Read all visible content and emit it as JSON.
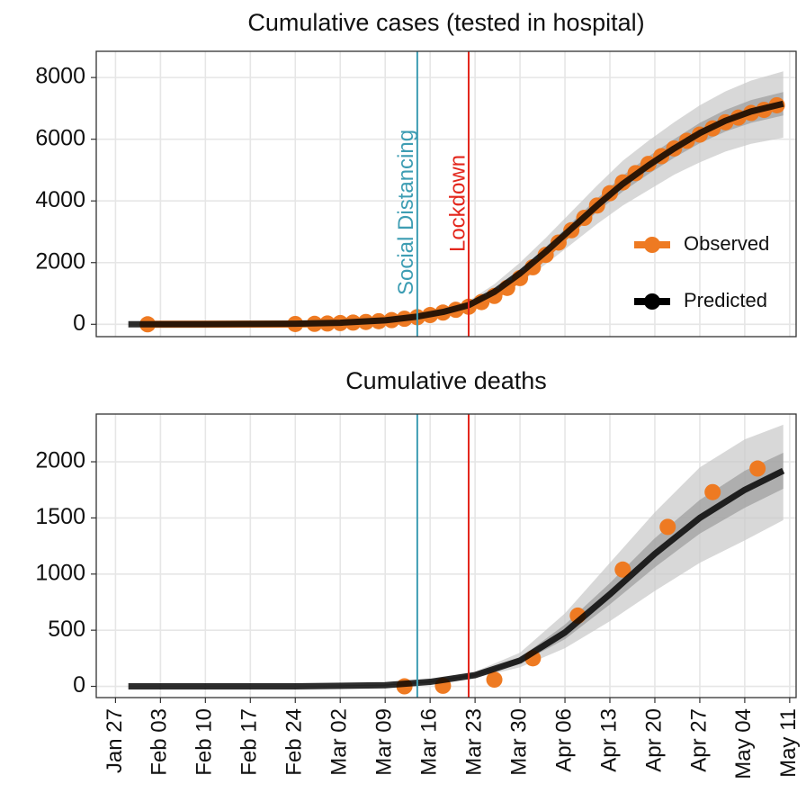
{
  "chart_data": [
    {
      "type": "line",
      "title": "Cumulative cases (tested in hospital)",
      "xlim": [
        "Jan 24",
        "May 12"
      ],
      "xticks": [
        "Jan 27",
        "Feb 03",
        "Feb 10",
        "Feb 17",
        "Feb 24",
        "Mar 02",
        "Mar 09",
        "Mar 16",
        "Mar 23",
        "Mar 30",
        "Apr 06",
        "Apr 13",
        "Apr 20",
        "Apr 27",
        "May 04",
        "May 11"
      ],
      "ylim": [
        -400,
        8850
      ],
      "yticks": [
        0,
        2000,
        4000,
        6000,
        8000
      ],
      "grid": true,
      "legend": "right",
      "vlines": [
        {
          "label": "Social Distancing",
          "x": "Mar 14",
          "color": "#3d9db3"
        },
        {
          "label": "Lockdown",
          "x": "Mar 22",
          "color": "#e3261c"
        }
      ],
      "series": [
        {
          "name": "Observed",
          "color": "#ee7a22",
          "show_line": true,
          "x": [
            "Feb 01",
            "Feb 24",
            "Feb 27",
            "Feb 29",
            "Mar 02",
            "Mar 04",
            "Mar 06",
            "Mar 08",
            "Mar 10",
            "Mar 12",
            "Mar 14",
            "Mar 16",
            "Mar 18",
            "Mar 20",
            "Mar 22",
            "Mar 24",
            "Mar 26",
            "Mar 28",
            "Mar 30",
            "Apr 01",
            "Apr 03",
            "Apr 05",
            "Apr 07",
            "Apr 09",
            "Apr 11",
            "Apr 13",
            "Apr 15",
            "Apr 17",
            "Apr 19",
            "Apr 21",
            "Apr 23",
            "Apr 25",
            "Apr 27",
            "Apr 29",
            "May 01",
            "May 03",
            "May 05",
            "May 07",
            "May 09"
          ],
          "values": [
            0,
            10,
            15,
            25,
            40,
            55,
            75,
            100,
            135,
            180,
            230,
            300,
            380,
            470,
            570,
            720,
            920,
            1180,
            1500,
            1850,
            2250,
            2650,
            3050,
            3450,
            3850,
            4250,
            4600,
            4900,
            5200,
            5450,
            5700,
            5950,
            6150,
            6350,
            6550,
            6700,
            6850,
            6950,
            7100
          ]
        },
        {
          "name": "Predicted",
          "color": "#000000",
          "x": [
            "Jan 29",
            "Feb 10",
            "Feb 24",
            "Mar 02",
            "Mar 09",
            "Mar 14",
            "Mar 18",
            "Mar 22",
            "Mar 26",
            "Mar 30",
            "Apr 03",
            "Apr 07",
            "Apr 11",
            "Apr 15",
            "Apr 19",
            "Apr 23",
            "Apr 27",
            "May 01",
            "May 05",
            "May 10"
          ],
          "values": [
            0,
            5,
            20,
            50,
            130,
            250,
            400,
            620,
            1050,
            1650,
            2350,
            3100,
            3850,
            4550,
            5150,
            5700,
            6200,
            6600,
            6900,
            7150
          ],
          "band95": {
            "lower": [
              0,
              0,
              10,
              30,
              95,
              190,
              310,
              500,
              850,
              1350,
              1950,
              2600,
              3250,
              3850,
              4350,
              4850,
              5250,
              5600,
              5850,
              6050
            ],
            "upper": [
              0,
              15,
              35,
              75,
              170,
              320,
              500,
              760,
              1300,
              2000,
              2800,
              3650,
              4500,
              5300,
              5950,
              6550,
              7100,
              7550,
              7900,
              8200
            ]
          },
          "band50": {
            "lower": [
              0,
              3,
              16,
              42,
              118,
              230,
              370,
              580,
              980,
              1550,
              2200,
              2920,
              3640,
              4300,
              4870,
              5400,
              5870,
              6250,
              6530,
              6770
            ],
            "upper": [
              0,
              8,
              25,
              58,
              142,
              272,
              432,
              665,
              1130,
              1760,
              2500,
              3290,
              4080,
              4820,
              5440,
              6000,
              6530,
              6950,
              7270,
              7530
            ]
          }
        }
      ]
    },
    {
      "type": "line",
      "title": "Cumulative deaths",
      "xlim": [
        "Jan 24",
        "May 12"
      ],
      "xticks": [
        "Jan 27",
        "Feb 03",
        "Feb 10",
        "Feb 17",
        "Feb 24",
        "Mar 02",
        "Mar 09",
        "Mar 16",
        "Mar 23",
        "Mar 30",
        "Apr 06",
        "Apr 13",
        "Apr 20",
        "Apr 27",
        "May 04",
        "May 11"
      ],
      "ylim": [
        -100,
        2425
      ],
      "yticks": [
        0,
        500,
        1000,
        1500,
        2000
      ],
      "grid": true,
      "vlines": [
        {
          "x": "Mar 14",
          "color": "#3d9db3"
        },
        {
          "x": "Mar 22",
          "color": "#e3261c"
        }
      ],
      "series": [
        {
          "color": "#ee7a22",
          "x": [
            "Mar 12",
            "Mar 18",
            "Mar 26",
            "Apr 01",
            "Apr 08",
            "Apr 15",
            "Apr 22",
            "Apr 29",
            "May 06"
          ],
          "values": [
            0,
            5,
            60,
            250,
            630,
            1040,
            1420,
            1730,
            1940
          ]
        },
        {
          "color": "#000000",
          "x": [
            "Jan 29",
            "Feb 24",
            "Mar 09",
            "Mar 16",
            "Mar 23",
            "Mar 30",
            "Apr 06",
            "Apr 13",
            "Apr 20",
            "Apr 27",
            "May 04",
            "May 10"
          ],
          "values": [
            0,
            0,
            10,
            40,
            100,
            230,
            480,
            820,
            1180,
            1500,
            1750,
            1920
          ],
          "band95": {
            "lower": [
              0,
              0,
              5,
              25,
              75,
              170,
              340,
              580,
              850,
              1100,
              1300,
              1480
            ],
            "upper": [
              0,
              0,
              18,
              60,
              130,
              300,
              650,
              1100,
              1550,
              1950,
              2200,
              2330
            ]
          },
          "band50": {
            "lower": [
              0,
              0,
              8,
              34,
              90,
              205,
              420,
              730,
              1060,
              1360,
              1590,
              1760
            ],
            "upper": [
              0,
              0,
              12,
              47,
              112,
              255,
              550,
              920,
              1320,
              1660,
              1920,
              2080
            ]
          }
        }
      ]
    }
  ]
}
